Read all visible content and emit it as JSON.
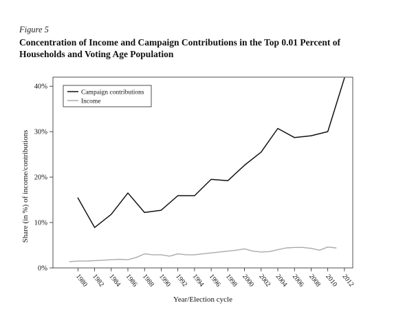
{
  "figure": {
    "label": "Figure 5",
    "title": "Concentration of Income and Campaign Contributions in the Top 0.01 Percent of Households and Voting Age Population"
  },
  "chart_data": {
    "type": "line",
    "title": "Concentration of Income and Campaign Contributions in the Top 0.01 Percent of Households and Voting Age Population",
    "xlabel": "Year/Election cycle",
    "ylabel": "Share (in %) of income/contributions",
    "xlim": [
      1977,
      2013
    ],
    "ylim": [
      0,
      42
    ],
    "x_ticks": [
      1980,
      1982,
      1984,
      1986,
      1988,
      1990,
      1992,
      1994,
      1996,
      1998,
      2000,
      2002,
      2004,
      2006,
      2008,
      2010,
      2012
    ],
    "y_ticks": [
      0,
      10,
      20,
      30,
      40
    ],
    "y_tick_labels": [
      "0%",
      "10%",
      "20%",
      "30%",
      "40%"
    ],
    "grid": false,
    "legend_position": "top-left",
    "series": [
      {
        "name": "Campaign contributions",
        "color": "#111111",
        "x": [
          1980,
          1982,
          1984,
          1986,
          1988,
          1990,
          1992,
          1994,
          1996,
          1998,
          2000,
          2002,
          2004,
          2006,
          2008,
          2010,
          2012
        ],
        "values": [
          15.4,
          8.9,
          11.8,
          16.5,
          12.2,
          12.7,
          15.9,
          15.9,
          19.5,
          19.2,
          22.6,
          25.5,
          30.7,
          28.7,
          29.1,
          30.0,
          41.8
        ]
      },
      {
        "name": "Income",
        "color": "#aaaaaa",
        "x": [
          1979,
          1980,
          1981,
          1982,
          1983,
          1984,
          1985,
          1986,
          1987,
          1988,
          1989,
          1990,
          1991,
          1992,
          1993,
          1994,
          1995,
          1996,
          1997,
          1998,
          1999,
          2000,
          2001,
          2002,
          2003,
          2004,
          2005,
          2006,
          2007,
          2008,
          2009,
          2010,
          2011
        ],
        "values": [
          1.4,
          1.5,
          1.5,
          1.6,
          1.7,
          1.8,
          1.9,
          1.8,
          2.3,
          3.1,
          2.9,
          2.9,
          2.6,
          3.1,
          2.9,
          2.9,
          3.1,
          3.3,
          3.5,
          3.7,
          3.9,
          4.2,
          3.7,
          3.5,
          3.6,
          4.0,
          4.4,
          4.5,
          4.5,
          4.3,
          3.9,
          4.6,
          4.4
        ]
      }
    ]
  }
}
